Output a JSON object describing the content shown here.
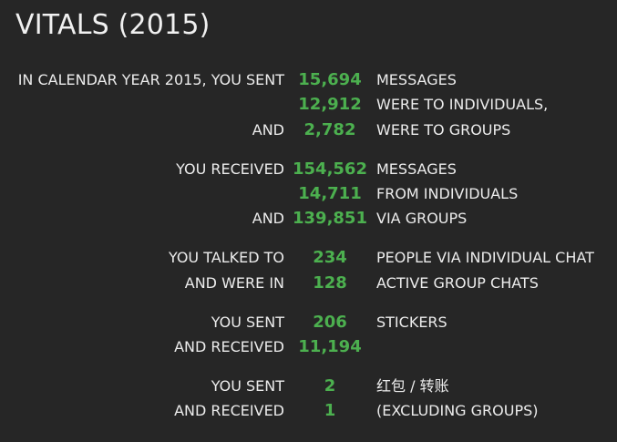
{
  "title": "VITALS (2015)",
  "rows": [
    {
      "label": "IN CALENDAR YEAR 2015, YOU SENT",
      "value": "15,694",
      "desc": "MESSAGES"
    },
    {
      "label": "",
      "value": "12,912",
      "desc": "WERE TO INDIVIDUALS,"
    },
    {
      "label": "AND",
      "value": "2,782",
      "desc": "WERE TO GROUPS"
    },
    {
      "label": "YOU RECEIVED",
      "value": "154,562",
      "desc": "MESSAGES"
    },
    {
      "label": "",
      "value": "14,711",
      "desc": "FROM INDIVIDUALS"
    },
    {
      "label": "AND",
      "value": "139,851",
      "desc": "VIA GROUPS"
    },
    {
      "label": "YOU TALKED TO",
      "value": "234",
      "desc": "PEOPLE VIA INDIVIDUAL CHAT"
    },
    {
      "label": "AND WERE IN",
      "value": "128",
      "desc": "ACTIVE GROUP CHATS"
    },
    {
      "label": "YOU SENT",
      "value": "206",
      "desc": "STICKERS"
    },
    {
      "label": "AND RECEIVED",
      "value": "11,194",
      "desc": ""
    },
    {
      "label": "YOU SENT",
      "value": "2",
      "desc": "红包 / 转账"
    },
    {
      "label": "AND RECEIVED",
      "value": "1",
      "desc": "(EXCLUDING GROUPS)"
    }
  ],
  "colors": {
    "background": "#262626",
    "text": "#ececec",
    "accent": "#4cb04f"
  }
}
